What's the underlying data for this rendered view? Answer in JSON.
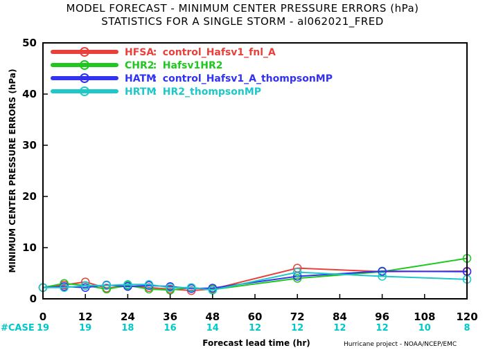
{
  "chart_data": {
    "type": "line",
    "title": "MODEL FORECAST - MINIMUM CENTER PRESSURE ERRORS (hPa)",
    "subtitle": "STATISTICS FOR A SINGLE STORM - al062021_FRED",
    "xlabel": "Forecast lead time (hr)",
    "ylabel": "MINIMUM CENTER PRESSURE ERRORS (hPa)",
    "xlim": [
      0,
      120
    ],
    "ylim": [
      0,
      50
    ],
    "xticks": [
      "0",
      "12",
      "24",
      "36",
      "48",
      "60",
      "72",
      "84",
      "96",
      "108",
      "120"
    ],
    "yticks": [
      "0",
      "10",
      "20",
      "30",
      "40",
      "50"
    ],
    "grid": false,
    "legend_position": "top-left",
    "case_label": "#CASE",
    "case_counts": [
      "19",
      "19",
      "18",
      "16",
      "14",
      "12",
      "12",
      "12",
      "12",
      "10",
      "8"
    ],
    "credit": "Hurricane project - NOAA/NCEP/EMC",
    "series": [
      {
        "name": "HFSA",
        "description": "control_Hafsv1_fnl_A",
        "color": "#e8413c",
        "x": [
          0,
          6,
          12,
          18,
          24,
          30,
          36,
          42,
          48,
          72,
          96,
          120
        ],
        "y": [
          2.2,
          2.7,
          3.3,
          2.1,
          2.5,
          2.2,
          1.9,
          1.6,
          1.9,
          6.0,
          5.3,
          5.4
        ]
      },
      {
        "name": "CHR2",
        "description": "Hafsv1HR2",
        "color": "#1ec81e",
        "x": [
          0,
          6,
          12,
          18,
          24,
          30,
          36,
          42,
          48,
          72,
          96,
          120
        ],
        "y": [
          2.2,
          3.0,
          2.6,
          1.9,
          2.6,
          1.9,
          1.7,
          2.2,
          1.8,
          4.0,
          5.3,
          7.9
        ]
      },
      {
        "name": "HATM",
        "description": "control_Hafsv1_A_thompsonMP",
        "color": "#3232f0",
        "x": [
          0,
          6,
          12,
          18,
          24,
          30,
          36,
          42,
          48,
          72,
          96,
          120
        ],
        "y": [
          2.2,
          2.4,
          2.2,
          2.7,
          2.4,
          2.6,
          2.4,
          2.0,
          2.1,
          4.4,
          5.4,
          5.3
        ]
      },
      {
        "name": "HRTM",
        "description": "HR2_thompsonMP",
        "color": "#1ec8c8",
        "x": [
          0,
          6,
          12,
          18,
          24,
          30,
          36,
          42,
          48,
          72,
          96,
          120
        ],
        "y": [
          2.2,
          2.2,
          2.6,
          2.6,
          2.8,
          2.8,
          2.2,
          2.2,
          1.7,
          5.2,
          4.4,
          3.8
        ]
      }
    ]
  }
}
